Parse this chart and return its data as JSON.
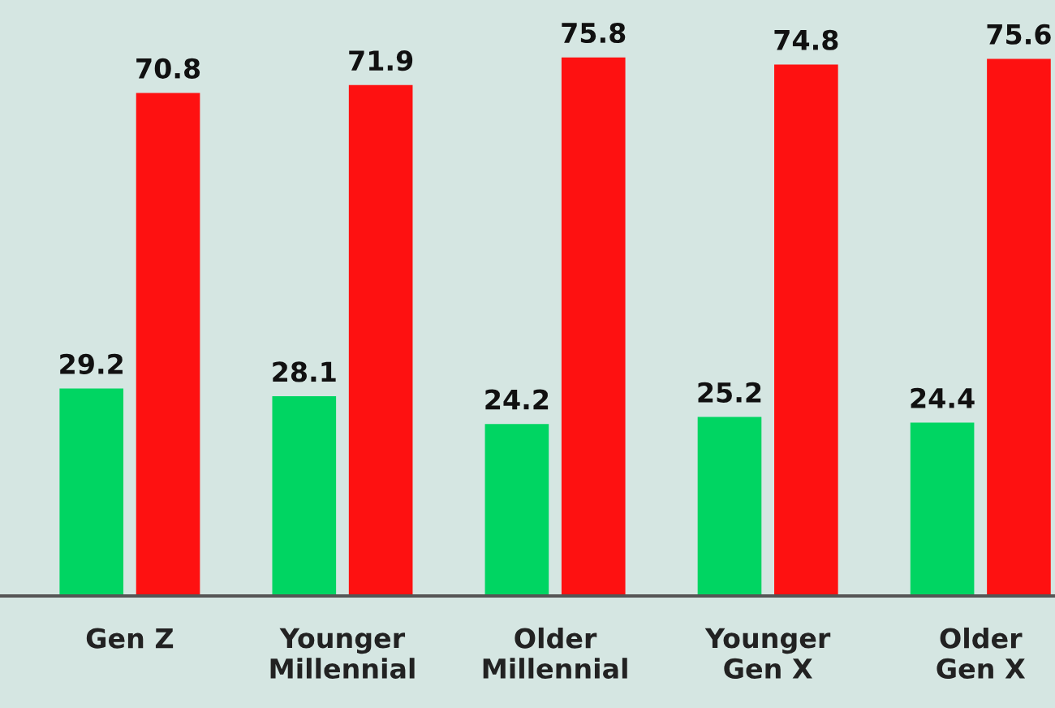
{
  "chart_data": {
    "type": "bar",
    "categories": [
      "Gen Z",
      "Younger\nMillennial",
      "Older\nMillennial",
      "Younger\nGen X",
      "Older\nGen X"
    ],
    "series": [
      {
        "color": "#00d562",
        "values": [
          29.2,
          28.1,
          24.2,
          25.2,
          24.4
        ]
      },
      {
        "color": "#fe1111",
        "values": [
          70.8,
          71.9,
          75.8,
          74.8,
          75.6
        ]
      }
    ],
    "data_labels": true,
    "grid": false,
    "legend": false
  }
}
